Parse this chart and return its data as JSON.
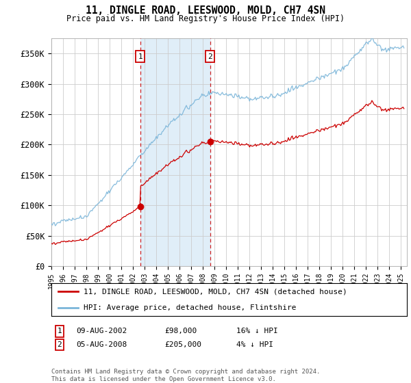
{
  "title": "11, DINGLE ROAD, LEESWOOD, MOLD, CH7 4SN",
  "subtitle": "Price paid vs. HM Land Registry's House Price Index (HPI)",
  "ylabel_ticks": [
    "£0",
    "£50K",
    "£100K",
    "£150K",
    "£200K",
    "£250K",
    "£300K",
    "£350K"
  ],
  "ytick_values": [
    0,
    50000,
    100000,
    150000,
    200000,
    250000,
    300000,
    350000
  ],
  "ylim": [
    0,
    375000
  ],
  "xlim_start": 1995.0,
  "xlim_end": 2025.5,
  "sale1_t": 2002.62,
  "sale1_p": 98000,
  "sale2_t": 2008.62,
  "sale2_p": 205000,
  "hpi_color": "#7ab5d9",
  "price_color": "#cc0000",
  "shading_color": "#e0eef8",
  "legend_line1": "11, DINGLE ROAD, LEESWOOD, MOLD, CH7 4SN (detached house)",
  "legend_line2": "HPI: Average price, detached house, Flintshire",
  "table_row1": [
    "1",
    "09-AUG-2002",
    "£98,000",
    "16% ↓ HPI"
  ],
  "table_row2": [
    "2",
    "05-AUG-2008",
    "£205,000",
    "4% ↓ HPI"
  ],
  "footer": "Contains HM Land Registry data © Crown copyright and database right 2024.\nThis data is licensed under the Open Government Licence v3.0.",
  "bg": "#ffffff",
  "grid_color": "#cccccc"
}
